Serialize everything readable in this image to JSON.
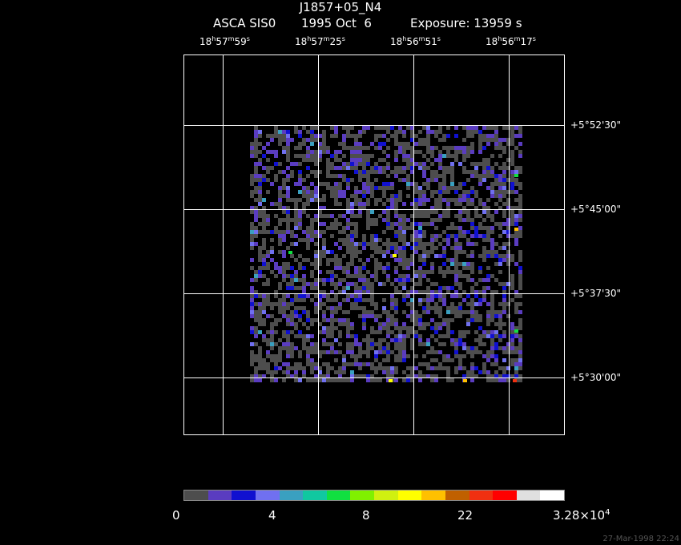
{
  "header": {
    "title": "J1857+05_N4",
    "instrument": "ASCA SIS0",
    "date": "1995 Oct  6",
    "exposure": "Exposure: 13959 s"
  },
  "ra_labels": [
    {
      "h": "18",
      "m": "57",
      "s": "59"
    },
    {
      "h": "18",
      "m": "57",
      "s": "25"
    },
    {
      "h": "18",
      "m": "56",
      "s": "51"
    },
    {
      "h": "18",
      "m": "56",
      "s": "17"
    }
  ],
  "dec_labels": [
    "+5°52'30\"",
    "+5°45'00\"",
    "+5°37'30\"",
    "+5°30'00\""
  ],
  "colorbar": {
    "colors": [
      "#4d4d4d",
      "#5a3cc0",
      "#1010d0",
      "#7070f0",
      "#3aa0c0",
      "#10c8a0",
      "#10e040",
      "#80f000",
      "#d0f010",
      "#ffff00",
      "#ffc000",
      "#c06000",
      "#f03010",
      "#ff0000",
      "#e0e0e0",
      "#ffffff"
    ],
    "labels": [
      "0",
      "4",
      "8",
      "22"
    ],
    "max_mantissa": "3.28×10",
    "max_exp": "4"
  },
  "footer": "27-Mar-1998 22:24"
}
